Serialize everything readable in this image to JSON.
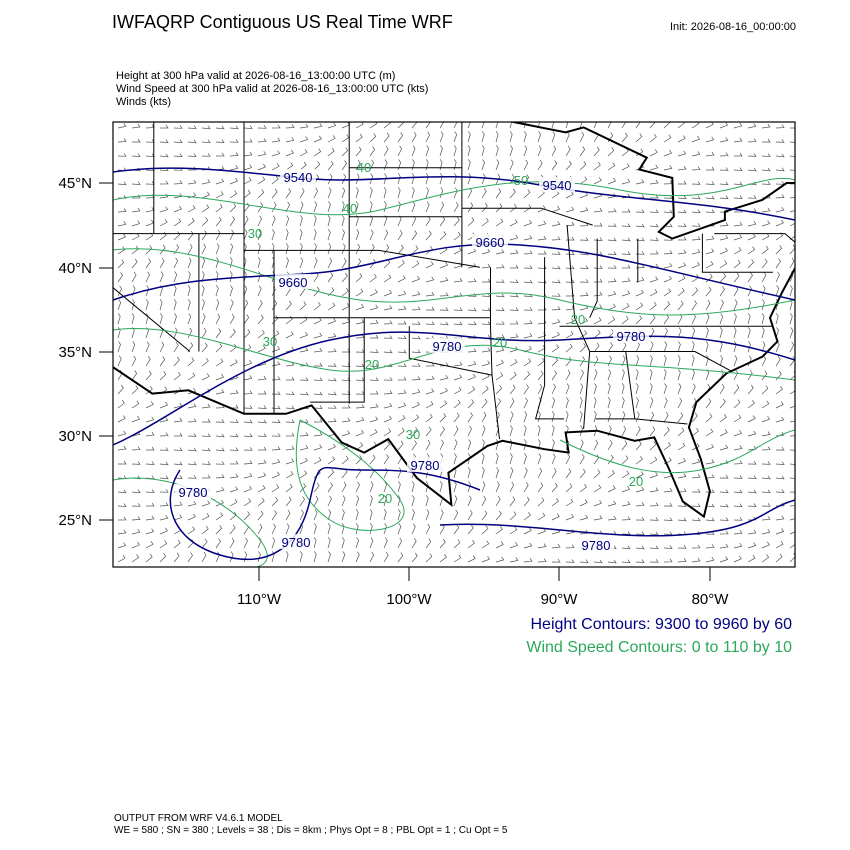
{
  "header": {
    "title": "IWFAQRP Contiguous US Real Time WRF",
    "init": "Init: 2026-08-16_00:00:00",
    "fields": [
      "Height at 300 hPa valid at 2026-08-16_13:00:00 UTC   (m)",
      "Wind Speed at 300 hPa valid at 2026-08-16_13:00:00 UTC   (kts)",
      "Winds   (kts)"
    ]
  },
  "map": {
    "lat_labels": [
      "45°N",
      "40°N",
      "35°N",
      "30°N",
      "25°N"
    ],
    "lon_labels": [
      "110°W",
      "100°W",
      "90°W",
      "80°W"
    ],
    "height_labels": [
      "9540",
      "9540",
      "9660",
      "9660",
      "9780",
      "9780",
      "9780",
      "9780",
      "9780",
      "9780"
    ],
    "speed_labels": [
      "40",
      "40",
      "50",
      "30",
      "30",
      "20",
      "20",
      "20",
      "30",
      "20",
      "20"
    ]
  },
  "legend": {
    "height": "Height Contours: 9300 to 9960 by 60",
    "speed": "Wind Speed Contours: 0 to 110 by 10"
  },
  "footer": {
    "model": "OUTPUT FROM WRF V4.6.1 MODEL",
    "settings": "WE = 580 ; SN = 380 ; Levels = 38 ; Dis = 8km ; Phys Opt = 8 ; PBL Opt = 1 ; Cu Opt = 5"
  }
}
